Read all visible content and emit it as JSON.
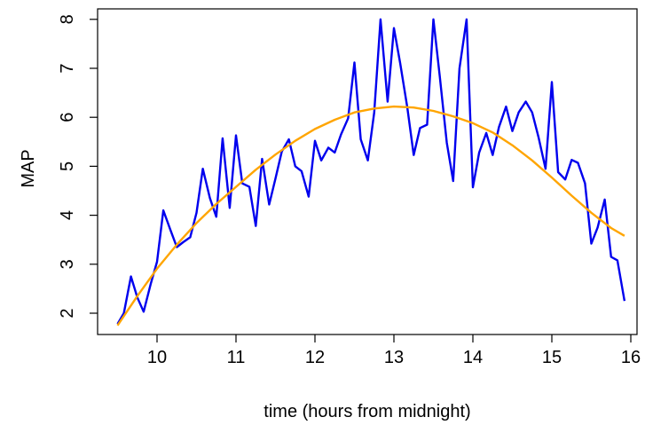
{
  "chart_data": {
    "type": "line",
    "title": "",
    "xlabel": "time (hours from midnight)",
    "ylabel": "MAP",
    "xlim": [
      9.45,
      16.0
    ],
    "ylim": [
      1.75,
      8.0
    ],
    "x_ticks": [
      10,
      11,
      12,
      13,
      14,
      15,
      16
    ],
    "y_ticks": [
      2,
      3,
      4,
      5,
      6,
      7,
      8
    ],
    "grid": false,
    "legend": "none",
    "series": [
      {
        "color": "#0000EE",
        "style": "solid",
        "x": [
          9.5,
          9.58,
          9.67,
          9.75,
          9.83,
          9.92,
          10.0,
          10.08,
          10.17,
          10.25,
          10.33,
          10.42,
          10.5,
          10.58,
          10.67,
          10.75,
          10.83,
          10.92,
          11.0,
          11.08,
          11.17,
          11.25,
          11.33,
          11.42,
          11.5,
          11.58,
          11.67,
          11.75,
          11.83,
          11.92,
          12.0,
          12.08,
          12.17,
          12.25,
          12.33,
          12.42,
          12.5,
          12.58,
          12.67,
          12.75,
          12.83,
          12.92,
          13.0,
          13.08,
          13.17,
          13.25,
          13.33,
          13.42,
          13.5,
          13.58,
          13.67,
          13.75,
          13.83,
          13.92,
          14.0,
          14.08,
          14.17,
          14.25,
          14.33,
          14.42,
          14.5,
          14.58,
          14.67,
          14.75,
          14.83,
          14.92,
          15.0,
          15.08,
          15.17,
          15.25,
          15.33,
          15.42,
          15.5,
          15.58,
          15.67,
          15.75,
          15.83,
          15.92
        ],
        "values": [
          1.78,
          2.0,
          2.75,
          2.32,
          2.03,
          2.6,
          3.05,
          4.1,
          3.7,
          3.35,
          3.45,
          3.55,
          4.05,
          4.95,
          4.35,
          3.97,
          5.57,
          4.15,
          5.63,
          4.65,
          4.58,
          3.78,
          5.15,
          4.22,
          4.75,
          5.3,
          5.55,
          5.0,
          4.9,
          4.38,
          5.52,
          5.12,
          5.38,
          5.28,
          5.65,
          5.98,
          7.12,
          5.55,
          5.12,
          6.1,
          8.0,
          6.32,
          7.82,
          7.1,
          6.2,
          5.23,
          5.78,
          5.85,
          8.0,
          6.85,
          5.48,
          4.7,
          7.0,
          8.0,
          4.57,
          5.28,
          5.68,
          5.23,
          5.8,
          6.22,
          5.72,
          6.1,
          6.32,
          6.1,
          5.6,
          4.95,
          6.72,
          4.88,
          4.73,
          5.13,
          5.07,
          4.65,
          3.42,
          3.75,
          4.32,
          3.15,
          3.08,
          2.25
        ]
      },
      {
        "color": "#FFA500",
        "style": "solid",
        "x": [
          9.5,
          9.75,
          10.0,
          10.25,
          10.5,
          10.75,
          11.0,
          11.25,
          11.5,
          11.75,
          12.0,
          12.25,
          12.5,
          12.75,
          13.0,
          13.25,
          13.5,
          13.75,
          14.0,
          14.25,
          14.5,
          14.75,
          15.0,
          15.25,
          15.5,
          15.75,
          15.92
        ],
        "values": [
          1.75,
          2.35,
          2.91,
          3.4,
          3.84,
          4.23,
          4.58,
          4.93,
          5.24,
          5.52,
          5.76,
          5.95,
          6.1,
          6.18,
          6.22,
          6.2,
          6.13,
          6.02,
          5.88,
          5.69,
          5.43,
          5.12,
          4.77,
          4.4,
          4.05,
          3.74,
          3.58
        ]
      }
    ]
  }
}
